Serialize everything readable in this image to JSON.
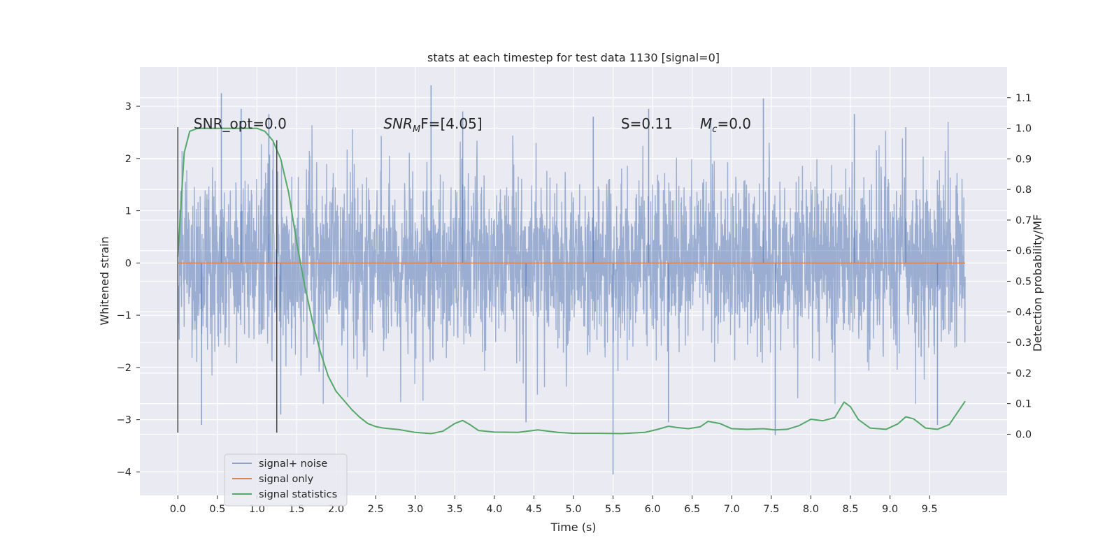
{
  "chart_data": {
    "type": "line",
    "title": "stats at each timestep for test data 1130 [signal=0]",
    "xlabel": "Time (s)",
    "ylabel": "Whitened strain",
    "y2label": "Detection probability/MF",
    "xlim": [
      -0.48,
      10.48
    ],
    "ylim": [
      -4.45,
      3.75
    ],
    "y2lim": [
      -0.2,
      1.2
    ],
    "x_ticks": [
      "0.0",
      "0.5",
      "1.0",
      "1.5",
      "2.0",
      "2.5",
      "3.0",
      "3.5",
      "4.0",
      "4.5",
      "5.0",
      "5.5",
      "6.0",
      "6.5",
      "7.0",
      "7.5",
      "8.0",
      "8.5",
      "9.0",
      "9.5"
    ],
    "y_ticks": [
      "3",
      "2",
      "1",
      "0",
      "−1",
      "−2",
      "−3",
      "−4"
    ],
    "y2_ticks": [
      "1.1",
      "1.0",
      "0.9",
      "0.8",
      "0.7",
      "0.6",
      "0.5",
      "0.4",
      "0.3",
      "0.2",
      "0.1",
      "0.0"
    ],
    "grid": true,
    "legend_position": "lower-left",
    "colors": {
      "noise": "#4c72b0",
      "signal_only": "#dd8452",
      "stats": "#55a868",
      "markers": "#444444",
      "background": "#eaeaf2",
      "grid": "#ffffff"
    },
    "annotations": [
      {
        "label": "SNR_opt=0.0",
        "x": 0.2
      },
      {
        "label_main": "SNR",
        "label_sub": "M",
        "label_tail": "F=[4.05]",
        "x": 2.6
      },
      {
        "label": "S=0.11",
        "x": 5.6
      },
      {
        "label_main": "M",
        "label_sub": "c",
        "label_tail": "=0.0",
        "x": 6.6
      }
    ],
    "vertical_markers": [
      {
        "x": 0.0,
        "y_range": [
          -3.25,
          2.6
        ]
      },
      {
        "x": 1.25,
        "y_range": [
          -3.25,
          2.35
        ]
      }
    ],
    "series": [
      {
        "name": "signal+ noise",
        "kind": "noisy waveform",
        "x_range": [
          0.0,
          9.95
        ],
        "envelope_core": [
          -1.45,
          1.45
        ],
        "peaks": [
          {
            "x": 0.55,
            "y": 3.25
          },
          {
            "x": 0.8,
            "y": 2.95
          },
          {
            "x": 1.15,
            "y": 2.85
          },
          {
            "x": 3.2,
            "y": 3.4
          },
          {
            "x": 3.6,
            "y": 2.9
          },
          {
            "x": 5.25,
            "y": 2.8
          },
          {
            "x": 5.95,
            "y": 2.95
          },
          {
            "x": 7.4,
            "y": 3.15
          },
          {
            "x": 8.55,
            "y": 2.85
          },
          {
            "x": 9.2,
            "y": 2.6
          }
        ],
        "troughs": [
          {
            "x": 0.3,
            "y": -3.1
          },
          {
            "x": 1.3,
            "y": -2.9
          },
          {
            "x": 4.4,
            "y": -3.05
          },
          {
            "x": 5.5,
            "y": -4.05
          },
          {
            "x": 6.2,
            "y": -3.05
          },
          {
            "x": 7.55,
            "y": -3.3
          },
          {
            "x": 9.6,
            "y": -3.1
          }
        ]
      },
      {
        "name": "signal only",
        "x": [
          0.0,
          9.95
        ],
        "y": [
          0.0,
          0.0
        ]
      },
      {
        "name": "signal statistics",
        "axis": "right",
        "x": [
          0.0,
          0.08,
          0.15,
          0.25,
          0.4,
          0.6,
          0.8,
          1.0,
          1.1,
          1.2,
          1.3,
          1.4,
          1.5,
          1.6,
          1.7,
          1.8,
          1.9,
          2.0,
          2.1,
          2.2,
          2.3,
          2.4,
          2.5,
          2.6,
          2.8,
          3.0,
          3.2,
          3.35,
          3.5,
          3.6,
          3.7,
          3.8,
          4.0,
          4.3,
          4.55,
          4.8,
          5.0,
          5.3,
          5.6,
          5.9,
          6.05,
          6.2,
          6.3,
          6.45,
          6.6,
          6.7,
          6.85,
          7.0,
          7.2,
          7.4,
          7.55,
          7.7,
          7.85,
          8.0,
          8.15,
          8.3,
          8.42,
          8.5,
          8.6,
          8.75,
          8.95,
          9.1,
          9.2,
          9.3,
          9.45,
          9.6,
          9.75,
          9.95
        ],
        "y": [
          0.58,
          0.92,
          0.99,
          1.0,
          1.0,
          1.0,
          1.0,
          1.0,
          0.99,
          0.96,
          0.9,
          0.79,
          0.63,
          0.49,
          0.37,
          0.27,
          0.19,
          0.14,
          0.11,
          0.08,
          0.055,
          0.035,
          0.025,
          0.02,
          0.015,
          0.006,
          0.002,
          0.01,
          0.035,
          0.045,
          0.03,
          0.012,
          0.007,
          0.006,
          0.014,
          0.006,
          0.003,
          0.003,
          0.002,
          0.006,
          0.015,
          0.026,
          0.022,
          0.018,
          0.024,
          0.042,
          0.035,
          0.018,
          0.016,
          0.018,
          0.014,
          0.016,
          0.028,
          0.049,
          0.044,
          0.054,
          0.105,
          0.09,
          0.048,
          0.02,
          0.016,
          0.034,
          0.057,
          0.05,
          0.02,
          0.016,
          0.032,
          0.108
        ]
      }
    ]
  }
}
